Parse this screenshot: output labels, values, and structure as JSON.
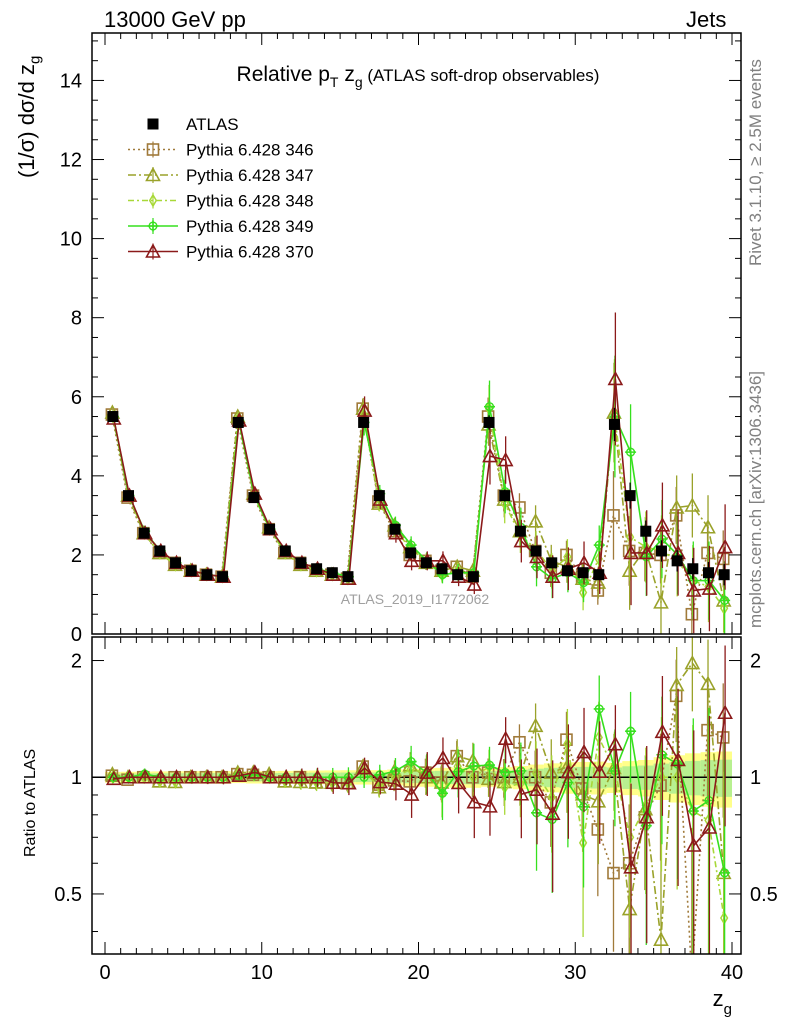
{
  "header": {
    "left": "13000 GeV pp",
    "right": "Jets"
  },
  "side_texts": {
    "rivet": "Rivet 3.1.10, ≥ 2.5M events",
    "mcplots": "mcplots.cern.ch [arXiv:1306.3436]"
  },
  "colors": {
    "atlas": "#000000",
    "p346": "#a07a3a",
    "p347": "#9aa22a",
    "p348": "#a8d838",
    "p349": "#36e01e",
    "p370": "#8b1a1a",
    "band_outer": "#ffff8a",
    "band_inner": "#b8f090"
  },
  "chart_data": {
    "type": "line",
    "title_prefix": "Relative p",
    "title_sub": "T",
    "title_mid": " z",
    "title_mid_sub": "g",
    "title_suffix": " (ATLAS soft-drop observables)",
    "watermark": "ATLAS_2019_I1772062",
    "xlabel": "z",
    "xlabel_sub": "g",
    "ylabel_main": "(1/σ) dσ/d z",
    "ylabel_main_sub": "g",
    "ylabel_ratio": "Ratio to ATLAS",
    "xlim": [
      0,
      40
    ],
    "ylim_main": [
      0,
      15.2
    ],
    "ylim_ratio": [
      0.35,
      2.3
    ],
    "x_ticks": [
      "0",
      "10",
      "20",
      "30",
      "40"
    ],
    "y_ticks_main": [
      "0",
      "2",
      "4",
      "6",
      "8",
      "10",
      "12",
      "14"
    ],
    "y_ticks_ratio": [
      "0.5",
      "1",
      "2"
    ],
    "x": [
      0.5,
      1.5,
      2.5,
      3.5,
      4.5,
      5.5,
      6.5,
      7.5,
      8.5,
      9.5,
      10.5,
      11.5,
      12.5,
      13.5,
      14.5,
      15.5,
      16.5,
      17.5,
      18.5,
      19.5,
      20.5,
      21.5,
      22.5,
      23.5,
      24.5,
      25.5,
      26.5,
      27.5,
      28.5,
      29.5,
      30.5,
      31.5,
      32.5,
      33.5,
      34.5,
      35.5,
      36.5,
      37.5,
      38.5,
      39.5
    ],
    "legend": [
      "ATLAS",
      "Pythia 6.428 346",
      "Pythia 6.428 347",
      "Pythia 6.428 348",
      "Pythia 6.428 349",
      "Pythia 6.428 370"
    ],
    "atlas": [
      5.5,
      3.5,
      2.55,
      2.1,
      1.8,
      1.6,
      1.5,
      1.45,
      5.35,
      3.45,
      2.65,
      2.1,
      1.8,
      1.65,
      1.55,
      1.45,
      5.35,
      3.5,
      2.65,
      2.05,
      1.8,
      1.65,
      1.5,
      1.45,
      5.35,
      3.5,
      2.6,
      2.1,
      1.8,
      1.6,
      1.55,
      1.5,
      5.3,
      3.5,
      2.6,
      2.1,
      1.85,
      1.65,
      1.55,
      1.5
    ],
    "series": [
      {
        "name": "Pythia 6.428 346",
        "key": "p346",
        "marker": "square",
        "dash": "2,3",
        "values": [
          5.55,
          3.45,
          2.55,
          2.05,
          1.8,
          1.6,
          1.5,
          1.45,
          5.45,
          3.5,
          2.65,
          2.05,
          1.8,
          1.6,
          1.5,
          1.4,
          5.7,
          3.35,
          2.6,
          2.0,
          1.85,
          1.6,
          1.7,
          1.45,
          5.5,
          3.5,
          3.2,
          2.1,
          1.55,
          2.0,
          1.45,
          1.1,
          3.0,
          2.1,
          2.05,
          2.0,
          3.0,
          0.5,
          2.05,
          1.9
        ]
      },
      {
        "name": "Pythia 6.428 347",
        "key": "p347",
        "marker": "triangle",
        "dash": "8,3,2,3",
        "values": [
          5.6,
          3.5,
          2.55,
          2.05,
          1.75,
          1.6,
          1.5,
          1.45,
          5.5,
          3.55,
          2.7,
          2.05,
          1.75,
          1.6,
          1.5,
          1.4,
          5.7,
          3.3,
          2.75,
          2.2,
          1.8,
          1.6,
          1.7,
          1.6,
          5.3,
          3.4,
          2.6,
          2.85,
          1.85,
          1.7,
          1.4,
          1.3,
          5.6,
          1.6,
          2.15,
          0.8,
          3.2,
          3.25,
          2.7,
          0.85
        ]
      },
      {
        "name": "Pythia 6.428 348",
        "key": "p348",
        "marker": "diamond",
        "dash": "6,3,2,3",
        "values": [
          5.5,
          3.5,
          2.55,
          2.05,
          1.75,
          1.6,
          1.5,
          1.45,
          5.45,
          3.5,
          2.65,
          2.05,
          1.75,
          1.6,
          1.5,
          1.4,
          5.55,
          3.3,
          2.65,
          2.15,
          1.85,
          1.5,
          1.6,
          1.45,
          5.7,
          3.3,
          2.5,
          2.15,
          1.6,
          1.95,
          1.05,
          1.9,
          5.55,
          2.45,
          2.2,
          2.1,
          1.85,
          1.35,
          1.2,
          0.65
        ]
      },
      {
        "name": "Pythia 6.428 349",
        "key": "p349",
        "marker": "cross",
        "dash": "",
        "values": [
          5.5,
          3.5,
          2.6,
          2.1,
          1.8,
          1.6,
          1.5,
          1.45,
          5.4,
          3.5,
          2.65,
          2.1,
          1.8,
          1.65,
          1.55,
          1.45,
          5.35,
          3.55,
          2.75,
          2.25,
          1.85,
          1.5,
          1.55,
          1.55,
          5.75,
          3.6,
          2.7,
          1.7,
          1.4,
          1.55,
          1.3,
          2.25,
          5.5,
          4.6,
          1.95,
          2.4,
          2.0,
          1.35,
          1.35,
          0.85
        ]
      },
      {
        "name": "Pythia 6.428 370",
        "key": "p370",
        "marker": "triangle",
        "dash": "",
        "values": [
          5.45,
          3.5,
          2.55,
          2.1,
          1.8,
          1.6,
          1.5,
          1.45,
          5.4,
          3.55,
          2.65,
          2.1,
          1.8,
          1.65,
          1.5,
          1.4,
          5.65,
          3.4,
          2.55,
          1.85,
          1.85,
          1.85,
          1.45,
          1.25,
          4.5,
          4.4,
          2.35,
          1.95,
          1.45,
          1.65,
          1.8,
          1.55,
          6.45,
          2.05,
          2.05,
          2.75,
          2.05,
          1.1,
          1.15,
          2.2
        ]
      }
    ],
    "errors": [
      0.05,
      0.05,
      0.05,
      0.05,
      0.05,
      0.05,
      0.05,
      0.05,
      0.1,
      0.1,
      0.08,
      0.08,
      0.08,
      0.08,
      0.08,
      0.08,
      0.3,
      0.2,
      0.2,
      0.2,
      0.2,
      0.2,
      0.2,
      0.2,
      0.6,
      0.5,
      0.45,
      0.45,
      0.45,
      0.45,
      0.45,
      0.45,
      1.4,
      1.1,
      0.9,
      0.9,
      0.9,
      0.9,
      0.9,
      0.9
    ]
  }
}
